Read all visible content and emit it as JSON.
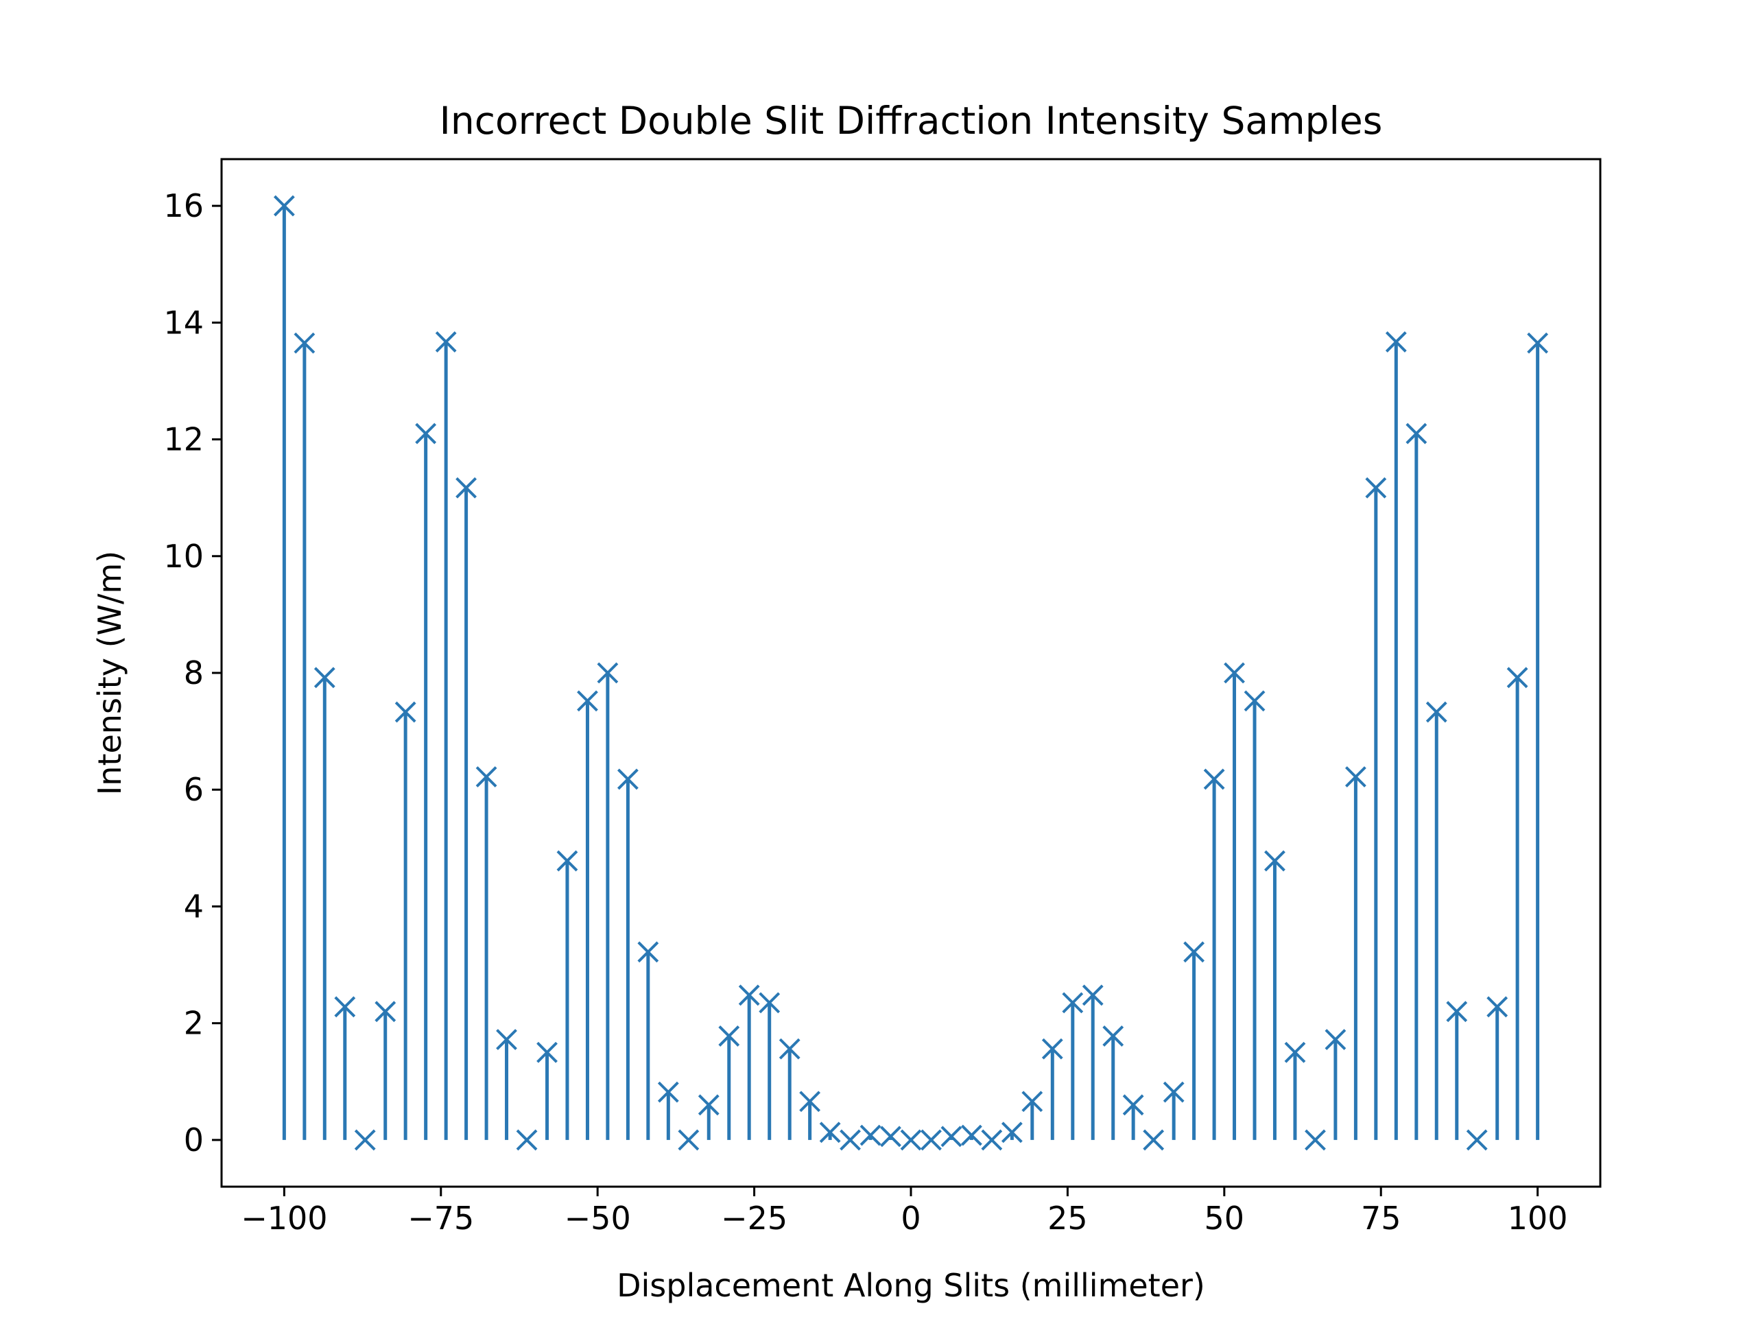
{
  "chart_data": {
    "type": "stem",
    "title": "Incorrect Double Slit Diffraction Intensity Samples",
    "xlabel": "Displacement Along Slits (millimeter)",
    "ylabel": "Intensity (W/m)",
    "xlim": [
      -110,
      110
    ],
    "ylim": [
      -0.8,
      16.8
    ],
    "xticks": [
      -100,
      -75,
      -50,
      -25,
      0,
      25,
      50,
      75,
      100
    ],
    "xtick_labels": [
      "−100",
      "−75",
      "−50",
      "−25",
      "0",
      "25",
      "50",
      "75",
      "100"
    ],
    "yticks": [
      0,
      2,
      4,
      6,
      8,
      10,
      12,
      14,
      16
    ],
    "ytick_labels": [
      "0",
      "2",
      "4",
      "6",
      "8",
      "10",
      "12",
      "14",
      "16"
    ],
    "marker": "x",
    "color": "#2a78b4",
    "grid": false,
    "x": [
      -100,
      -96.77,
      -93.55,
      -90.32,
      -87.1,
      -83.87,
      -80.65,
      -77.42,
      -74.19,
      -70.97,
      -67.74,
      -64.52,
      -61.29,
      -58.06,
      -54.84,
      -51.61,
      -48.39,
      -45.16,
      -41.94,
      -38.71,
      -35.48,
      -32.26,
      -29.03,
      -25.81,
      -22.58,
      -19.35,
      -16.13,
      -12.9,
      -9.68,
      -6.45,
      -3.23,
      0,
      3.23,
      6.45,
      9.68,
      12.9,
      16.13,
      19.35,
      22.58,
      25.81,
      29.03,
      32.26,
      35.48,
      38.71,
      41.94,
      45.16,
      48.39,
      51.61,
      54.84,
      58.06,
      61.29,
      64.52,
      67.74,
      70.97,
      74.19,
      77.42,
      80.65,
      83.87,
      87.1,
      90.32,
      93.55,
      96.77,
      100
    ],
    "y": [
      16.0,
      13.65,
      7.92,
      2.28,
      0.0,
      2.2,
      7.33,
      12.1,
      13.67,
      11.17,
      6.22,
      1.72,
      0.0,
      1.5,
      4.78,
      7.52,
      8.0,
      6.18,
      3.22,
      0.82,
      0.0,
      0.6,
      1.78,
      2.48,
      2.35,
      1.56,
      0.66,
      0.13,
      0.0,
      0.08,
      0.06,
      0.0,
      0.0,
      0.06,
      0.08,
      0.0,
      0.13,
      0.66,
      1.56,
      2.35,
      2.48,
      1.78,
      0.6,
      0.0,
      0.82,
      3.22,
      6.18,
      8.0,
      7.52,
      4.78,
      1.5,
      0.0,
      1.72,
      6.22,
      11.17,
      13.67,
      12.1,
      7.33,
      2.2,
      0.0,
      2.28,
      7.92,
      13.65
    ]
  }
}
